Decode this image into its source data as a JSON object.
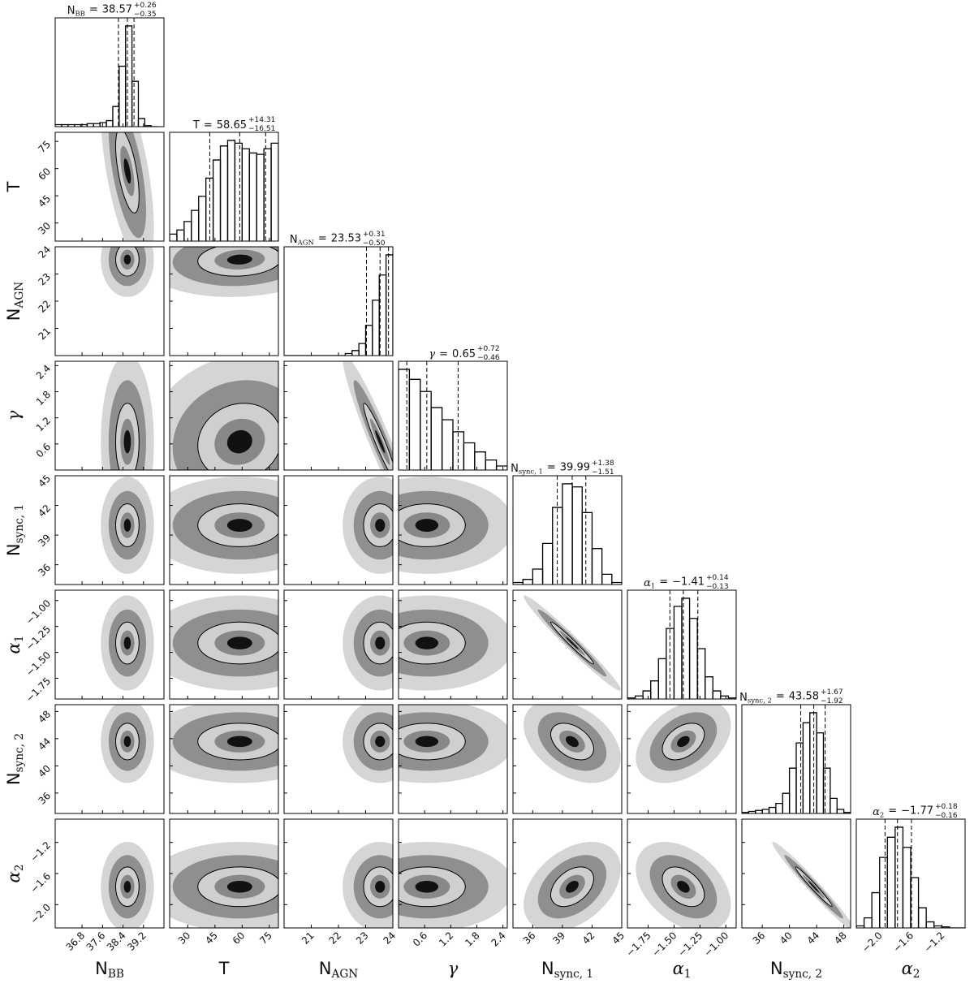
{
  "chart_data": {
    "type": "corner",
    "equals": "=",
    "params": [
      {
        "label": "N",
        "label_sub": "BB",
        "title_value": "38.57",
        "title_plus": "+0.26",
        "title_minus": "−0.35",
        "quantiles": [
          38.22,
          38.57,
          38.83
        ],
        "lim": [
          35.75,
          40.0
        ],
        "ticks": [
          36.8,
          37.6,
          38.4,
          39.2
        ],
        "bins": [
          35.75,
          36,
          36.25,
          36.5,
          36.75,
          37,
          37.25,
          37.5,
          37.75,
          38,
          38.25,
          38.5,
          38.75,
          39,
          39.25,
          39.5,
          39.75
        ],
        "counts": [
          2,
          2,
          2,
          2,
          2,
          3,
          3,
          4,
          6,
          20,
          60,
          100,
          45,
          8,
          1,
          0
        ]
      },
      {
        "label": "T",
        "title_value": "58.65",
        "title_plus": "+14.31",
        "title_minus": "−16.51",
        "quantiles": [
          42.14,
          58.65,
          72.96
        ],
        "lim": [
          20,
          80
        ],
        "ticks": [
          30,
          45,
          60,
          75
        ],
        "bins": [
          20,
          24,
          28,
          32,
          36,
          40,
          44,
          48,
          52,
          56,
          60,
          64,
          68,
          72,
          76,
          80
        ],
        "counts": [
          5,
          8,
          14,
          22,
          32,
          45,
          58,
          68,
          72,
          70,
          66,
          63,
          62,
          66,
          70
        ]
      },
      {
        "label": "N",
        "label_sub": "AGN",
        "title_value": "23.53",
        "title_plus": "+0.31",
        "title_minus": "−0.50",
        "quantiles": [
          23.03,
          23.53,
          23.84
        ],
        "lim": [
          20,
          24
        ],
        "ticks": [
          21,
          22,
          23,
          24
        ],
        "bins": [
          20,
          20.25,
          20.5,
          20.75,
          21,
          21.25,
          21.5,
          21.75,
          22,
          22.25,
          22.5,
          22.75,
          23,
          23.25,
          23.5,
          23.75,
          24
        ],
        "counts": [
          0,
          0,
          0,
          0,
          0,
          0,
          0,
          0,
          0,
          2,
          5,
          12,
          30,
          55,
          80,
          100
        ]
      },
      {
        "label": "γ",
        "title_value": "0.65",
        "title_plus": "+0.72",
        "title_minus": "−0.46",
        "quantiles": [
          0.19,
          0.65,
          1.37
        ],
        "lim": [
          0,
          2.5
        ],
        "ticks": [
          0.6,
          1.2,
          1.8,
          2.4
        ],
        "bins": [
          0,
          0.25,
          0.5,
          0.75,
          1,
          1.25,
          1.5,
          1.75,
          2,
          2.25,
          2.5
        ],
        "counts": [
          100,
          90,
          78,
          62,
          50,
          38,
          27,
          18,
          10,
          4
        ]
      },
      {
        "label": "N",
        "label_sub": "sync, 1",
        "title_value": "39.99",
        "title_plus": "+1.38",
        "title_minus": "−1.51",
        "quantiles": [
          38.48,
          39.99,
          41.37
        ],
        "lim": [
          34,
          45
        ],
        "ticks": [
          36,
          39,
          42,
          45
        ],
        "bins": [
          34,
          35,
          36,
          37,
          38,
          39,
          40,
          41,
          42,
          43,
          44,
          45
        ],
        "counts": [
          2,
          5,
          15,
          40,
          75,
          98,
          95,
          70,
          35,
          10,
          2
        ]
      },
      {
        "label": "α",
        "label_sub": "1",
        "title_value": "−1.41",
        "title_plus": "+0.14",
        "title_minus": "−0.13",
        "quantiles": [
          -1.54,
          -1.41,
          -1.27
        ],
        "lim": [
          -1.95,
          -0.9
        ],
        "ticks": [
          {
            "value": -1.75,
            "label": "−1.75"
          },
          {
            "value": -1.5,
            "label": "−1.50"
          },
          {
            "value": -1.25,
            "label": "−1.25"
          },
          {
            "value": -1.0,
            "label": "−1.00"
          }
        ],
        "bins": [
          -1.95,
          -1.875,
          -1.8,
          -1.725,
          -1.65,
          -1.575,
          -1.5,
          -1.425,
          -1.35,
          -1.275,
          -1.2,
          -1.125,
          -1.05,
          -0.975,
          -0.9
        ],
        "counts": [
          1,
          3,
          8,
          18,
          40,
          70,
          92,
          100,
          80,
          50,
          22,
          8,
          3,
          1
        ]
      },
      {
        "label": "N",
        "label_sub": "sync, 2",
        "title_value": "43.58",
        "title_plus": "+1.67",
        "title_minus": "−1.92",
        "quantiles": [
          41.66,
          43.58,
          45.25
        ],
        "lim": [
          33,
          49
        ],
        "ticks": [
          36,
          40,
          44,
          48
        ],
        "bins": [
          33,
          34,
          35,
          36,
          37,
          38,
          39,
          40,
          41,
          42,
          43,
          44,
          45,
          46,
          47,
          48,
          49
        ],
        "counts": [
          1,
          2,
          3,
          4,
          6,
          10,
          20,
          45,
          70,
          90,
          100,
          80,
          45,
          15,
          4,
          1
        ]
      },
      {
        "label": "α",
        "label_sub": "2",
        "title_value": "−1.77",
        "title_plus": "+0.18",
        "title_minus": "−0.16",
        "quantiles": [
          -1.93,
          -1.77,
          -1.59
        ],
        "lim": [
          -2.3,
          -0.9
        ],
        "ticks": [
          {
            "value": -2.0,
            "label": "−2.0"
          },
          {
            "value": -1.6,
            "label": "−1.6"
          },
          {
            "value": -1.2,
            "label": "−1.2"
          }
        ],
        "bins": [
          -2.3,
          -2.2,
          -2.1,
          -2.0,
          -1.9,
          -1.8,
          -1.7,
          -1.6,
          -1.5,
          -1.4,
          -1.3,
          -1.2,
          -1.1,
          -1.0,
          -0.9
        ],
        "counts": [
          2,
          10,
          35,
          70,
          90,
          100,
          80,
          50,
          20,
          6,
          2,
          1,
          0,
          0
        ]
      }
    ],
    "correlation": [
      [
        -0.6
      ],
      [
        0,
        0.1
      ],
      [
        0,
        0.1,
        -0.95
      ],
      [
        0,
        0,
        0,
        0
      ],
      [
        0,
        0,
        0,
        0,
        -0.98
      ],
      [
        0,
        0,
        0,
        0,
        -0.4,
        0.4
      ],
      [
        0,
        0,
        0,
        0,
        0.4,
        -0.4,
        -0.98
      ]
    ]
  }
}
